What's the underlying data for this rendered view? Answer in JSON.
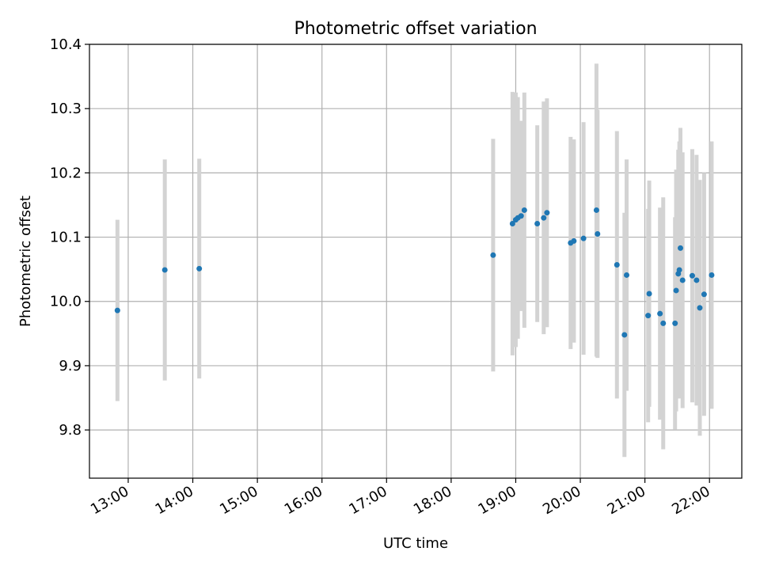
{
  "chart_data": {
    "type": "scatter",
    "title": "Photometric offset variation",
    "xlabel": "UTC time",
    "ylabel": "Photometric offset",
    "x_ticks": [
      "13:00",
      "14:00",
      "15:00",
      "16:00",
      "17:00",
      "18:00",
      "19:00",
      "20:00",
      "21:00",
      "22:00"
    ],
    "y_ticks": [
      "9.8",
      "9.9",
      "10.0",
      "10.1",
      "10.2",
      "10.3",
      "10.4"
    ],
    "xlim": [
      "12:24",
      "22:30"
    ],
    "ylim": [
      9.725,
      10.4
    ],
    "grid": true,
    "colors": {
      "point": "#1f77b4",
      "errorbar": "#d3d3d3",
      "grid": "#b0b0b0",
      "axis": "#000000"
    },
    "points": [
      {
        "time": "12:50",
        "offset": 9.986,
        "err": 0.141
      },
      {
        "time": "13:34",
        "offset": 10.049,
        "err": 0.172
      },
      {
        "time": "14:06",
        "offset": 10.051,
        "err": 0.171
      },
      {
        "time": "18:39",
        "offset": 10.072,
        "err": 0.181
      },
      {
        "time": "18:57",
        "offset": 10.121,
        "err": 0.205
      },
      {
        "time": "19:00",
        "offset": 10.127,
        "err": 0.198
      },
      {
        "time": "19:02",
        "offset": 10.13,
        "err": 0.188
      },
      {
        "time": "19:05",
        "offset": 10.133,
        "err": 0.148
      },
      {
        "time": "19:08",
        "offset": 10.142,
        "err": 0.183
      },
      {
        "time": "19:20",
        "offset": 10.121,
        "err": 0.153
      },
      {
        "time": "19:26",
        "offset": 10.13,
        "err": 0.181
      },
      {
        "time": "19:29",
        "offset": 10.138,
        "err": 0.178
      },
      {
        "time": "19:51",
        "offset": 10.091,
        "err": 0.165
      },
      {
        "time": "19:54",
        "offset": 10.094,
        "err": 0.158
      },
      {
        "time": "20:03",
        "offset": 10.098,
        "err": 0.181
      },
      {
        "time": "20:15",
        "offset": 10.142,
        "err": 0.228
      },
      {
        "time": "20:16",
        "offset": 10.105,
        "err": 0.193
      },
      {
        "time": "20:34",
        "offset": 10.057,
        "err": 0.208
      },
      {
        "time": "20:41",
        "offset": 9.948,
        "err": 0.19
      },
      {
        "time": "20:43",
        "offset": 10.041,
        "err": 0.18
      },
      {
        "time": "21:03",
        "offset": 9.978,
        "err": 0.166
      },
      {
        "time": "21:04",
        "offset": 10.012,
        "err": 0.176
      },
      {
        "time": "21:14",
        "offset": 9.981,
        "err": 0.165
      },
      {
        "time": "21:17",
        "offset": 9.966,
        "err": 0.196
      },
      {
        "time": "21:28",
        "offset": 9.966,
        "err": 0.165
      },
      {
        "time": "21:29",
        "offset": 10.017,
        "err": 0.188
      },
      {
        "time": "21:31",
        "offset": 10.043,
        "err": 0.193
      },
      {
        "time": "21:32",
        "offset": 10.049,
        "err": 0.2
      },
      {
        "time": "21:33",
        "offset": 10.083,
        "err": 0.187
      },
      {
        "time": "21:35",
        "offset": 10.033,
        "err": 0.199
      },
      {
        "time": "21:44",
        "offset": 10.04,
        "err": 0.197
      },
      {
        "time": "21:48",
        "offset": 10.033,
        "err": 0.195
      },
      {
        "time": "21:51",
        "offset": 9.99,
        "err": 0.199
      },
      {
        "time": "21:55",
        "offset": 10.011,
        "err": 0.189
      },
      {
        "time": "22:02",
        "offset": 10.041,
        "err": 0.208
      }
    ]
  }
}
